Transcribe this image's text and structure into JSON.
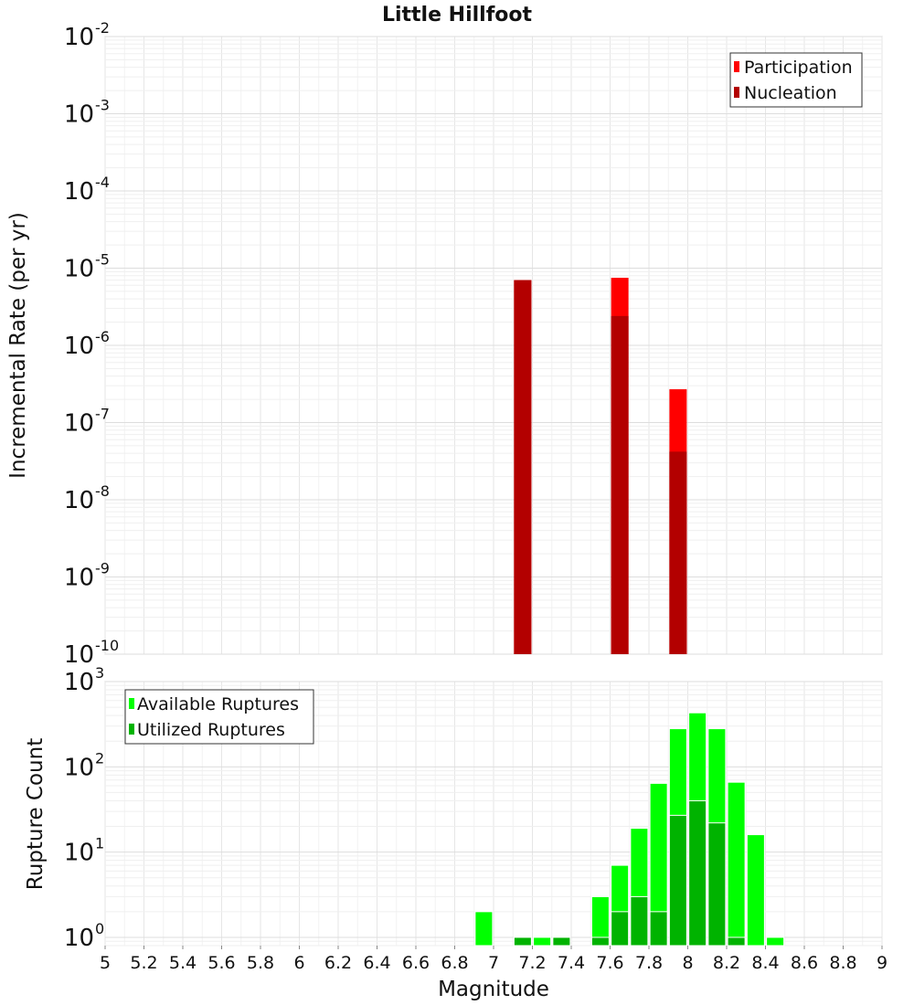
{
  "chart_data": [
    {
      "type": "bar",
      "title": "Little Hillfoot",
      "xlabel": "",
      "ylabel": "Incremental Rate (per yr)",
      "y_scale": "log",
      "xlim": [
        5,
        9
      ],
      "ylim": [
        1e-10,
        0.01
      ],
      "y_ticks": [
        {
          "base": "10",
          "exp": "-10",
          "value": 1e-10
        },
        {
          "base": "10",
          "exp": "-9",
          "value": 1e-09
        },
        {
          "base": "10",
          "exp": "-8",
          "value": 1e-08
        },
        {
          "base": "10",
          "exp": "-7",
          "value": 1e-07
        },
        {
          "base": "10",
          "exp": "-6",
          "value": 1e-06
        },
        {
          "base": "10",
          "exp": "-5",
          "value": 1e-05
        },
        {
          "base": "10",
          "exp": "-4",
          "value": 0.0001
        },
        {
          "base": "10",
          "exp": "-3",
          "value": 0.001
        },
        {
          "base": "10",
          "exp": "-2",
          "value": 0.01
        }
      ],
      "grid": true,
      "legend_position": "top-right",
      "series": [
        {
          "name": "Participation",
          "color": "#ff0000",
          "points": [
            {
              "x": 7.15,
              "y": 7e-06
            },
            {
              "x": 7.65,
              "y": 7.5e-06
            },
            {
              "x": 7.95,
              "y": 2.7e-07
            }
          ]
        },
        {
          "name": "Nucleation",
          "color": "#b30000",
          "points": [
            {
              "x": 7.15,
              "y": 7e-06
            },
            {
              "x": 7.65,
              "y": 2.4e-06
            },
            {
              "x": 7.95,
              "y": 4.2e-08
            }
          ]
        }
      ]
    },
    {
      "type": "bar",
      "xlabel": "Magnitude",
      "ylabel": "Rupture Count",
      "y_scale": "log",
      "xlim": [
        5,
        9
      ],
      "ylim": [
        0.8,
        1000
      ],
      "x_ticks": [
        "5",
        "5.2",
        "5.4",
        "5.6",
        "5.8",
        "6",
        "6.2",
        "6.4",
        "6.6",
        "6.8",
        "7",
        "7.2",
        "7.4",
        "7.6",
        "7.8",
        "8",
        "8.2",
        "8.4",
        "8.6",
        "8.8",
        "9"
      ],
      "y_ticks": [
        {
          "base": "10",
          "exp": "0",
          "value": 1
        },
        {
          "base": "10",
          "exp": "1",
          "value": 10
        },
        {
          "base": "10",
          "exp": "2",
          "value": 100
        },
        {
          "base": "10",
          "exp": "3",
          "value": 1000
        }
      ],
      "grid": true,
      "legend_position": "top-left",
      "series": [
        {
          "name": "Available Ruptures",
          "color": "#00ff00",
          "points": [
            {
              "x": 6.95,
              "y": 2
            },
            {
              "x": 7.15,
              "y": 1
            },
            {
              "x": 7.25,
              "y": 1
            },
            {
              "x": 7.35,
              "y": 1
            },
            {
              "x": 7.55,
              "y": 3
            },
            {
              "x": 7.65,
              "y": 7
            },
            {
              "x": 7.75,
              "y": 19
            },
            {
              "x": 7.85,
              "y": 64
            },
            {
              "x": 7.95,
              "y": 280
            },
            {
              "x": 8.05,
              "y": 430
            },
            {
              "x": 8.15,
              "y": 280
            },
            {
              "x": 8.25,
              "y": 66
            },
            {
              "x": 8.35,
              "y": 16
            },
            {
              "x": 8.45,
              "y": 1
            }
          ]
        },
        {
          "name": "Utilized Ruptures",
          "color": "#00b300",
          "points": [
            {
              "x": 7.15,
              "y": 1
            },
            {
              "x": 7.35,
              "y": 1
            },
            {
              "x": 7.55,
              "y": 1
            },
            {
              "x": 7.65,
              "y": 2
            },
            {
              "x": 7.75,
              "y": 3
            },
            {
              "x": 7.85,
              "y": 2
            },
            {
              "x": 7.95,
              "y": 27
            },
            {
              "x": 8.05,
              "y": 40
            },
            {
              "x": 8.15,
              "y": 22
            },
            {
              "x": 8.25,
              "y": 1
            }
          ]
        }
      ]
    }
  ]
}
